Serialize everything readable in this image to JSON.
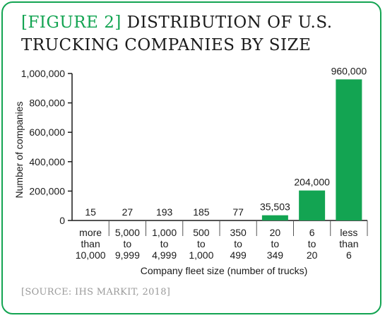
{
  "figure": {
    "figure_label": "[FIGURE 2]",
    "title_line1": "DISTRIBUTION OF U.S.",
    "title_line2": "TRUCKING COMPANIES BY SIZE",
    "source": "[SOURCE: IHS MARKIT, 2018]"
  },
  "colors": {
    "bar": "#13a452",
    "border": "#13a452",
    "text": "#1a1a1a",
    "source": "#9a9a9a"
  },
  "chart_data": {
    "type": "bar",
    "xlabel": "Company fleet size (number of trucks)",
    "ylabel": "Number of companies",
    "ylim": [
      0,
      1000000
    ],
    "yticks": [
      0,
      200000,
      400000,
      600000,
      800000,
      1000000
    ],
    "ytick_labels": [
      "0",
      "200,000",
      "400,000",
      "600,000",
      "800,000",
      "1,000,000"
    ],
    "categories": [
      [
        "more",
        "than",
        "10,000"
      ],
      [
        "5,000",
        "to",
        "9,999"
      ],
      [
        "1,000",
        "to",
        "4,999"
      ],
      [
        "500",
        "to",
        "1,000"
      ],
      [
        "350",
        "to",
        "499"
      ],
      [
        "20",
        "to",
        "349"
      ],
      [
        "6",
        "to",
        "20"
      ],
      [
        "less",
        "than",
        "6"
      ]
    ],
    "values": [
      15,
      27,
      193,
      185,
      77,
      35503,
      204000,
      960000
    ],
    "value_labels": [
      "15",
      "27",
      "193",
      "185",
      "77",
      "35,503",
      "204,000",
      "960,000"
    ],
    "grid": false,
    "legend": "none"
  }
}
